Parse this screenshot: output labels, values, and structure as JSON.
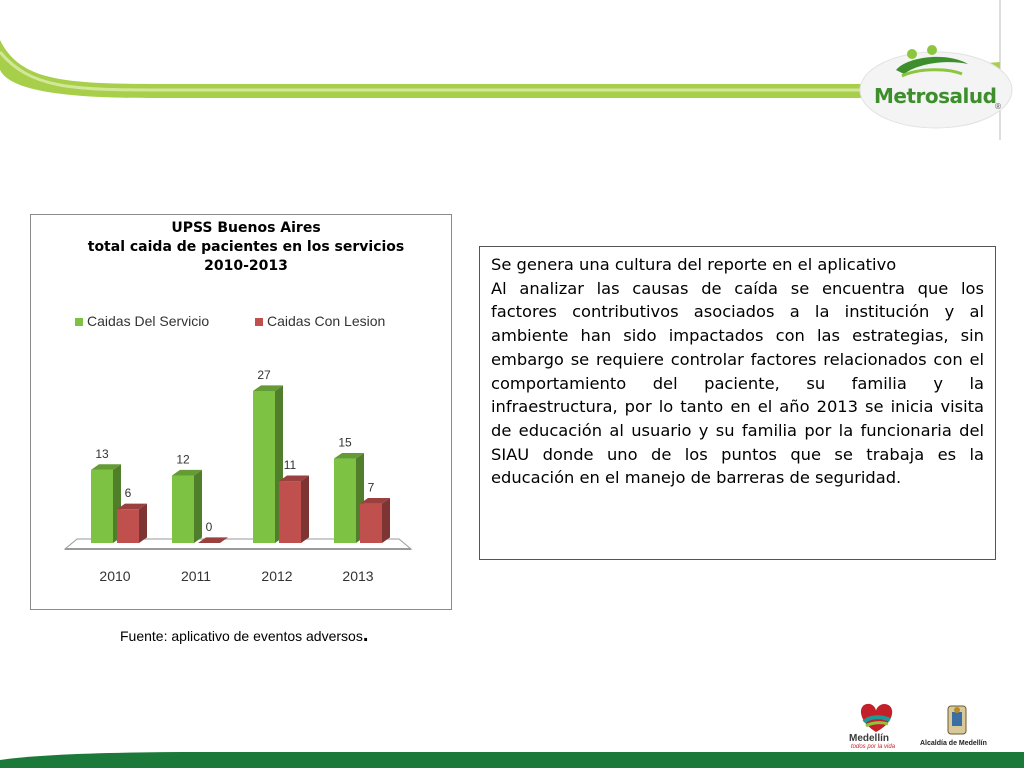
{
  "header": {
    "logo_name": "Metrosalud",
    "logo_registered": "®"
  },
  "chart_data": {
    "type": "bar",
    "title_lines": [
      "UPSS Buenos Aires",
      "total caida de pacientes  en los servicios",
      "2010-2013"
    ],
    "categories": [
      "2010",
      "2011",
      "2012",
      "2013"
    ],
    "series": [
      {
        "name": "Caidas Del Servicio",
        "values": [
          13,
          12,
          27,
          15
        ],
        "color": "#7dc242"
      },
      {
        "name": "Caidas Con Lesion",
        "values": [
          6,
          0,
          11,
          7
        ],
        "color": "#c0504d"
      }
    ],
    "ylim": [
      0,
      27
    ],
    "grid": false,
    "legend_position": "top",
    "style": "3d"
  },
  "description": {
    "paragraphs": [
      "Se genera una cultura del reporte en el aplicativo",
      "Al analizar las causas de caída se encuentra que los factores contributivos asociados a la institución y al ambiente han sido impactados con las estrategias, sin embargo se requiere controlar factores relacionados con el comportamiento del paciente, su familia y la infraestructura, por lo tanto en el año 2013  se inicia visita de educación al usuario y su familia por la funcionaria del SIAU donde uno de los puntos  que se trabaja es la educación en el manejo de barreras de seguridad."
    ]
  },
  "source": {
    "text": "Fuente: aplicativo de eventos adversos",
    "period": "."
  },
  "footer": {
    "medellin_name": "Medellín",
    "medellin_tagline": "todos por la vida",
    "alcaldia_name": "Alcaldía de Medellín"
  },
  "colors": {
    "brand_green": "#8cc63f",
    "bar_green": "#7dc242",
    "bar_red": "#c0504d",
    "footer_green": "#1b7a3a"
  }
}
